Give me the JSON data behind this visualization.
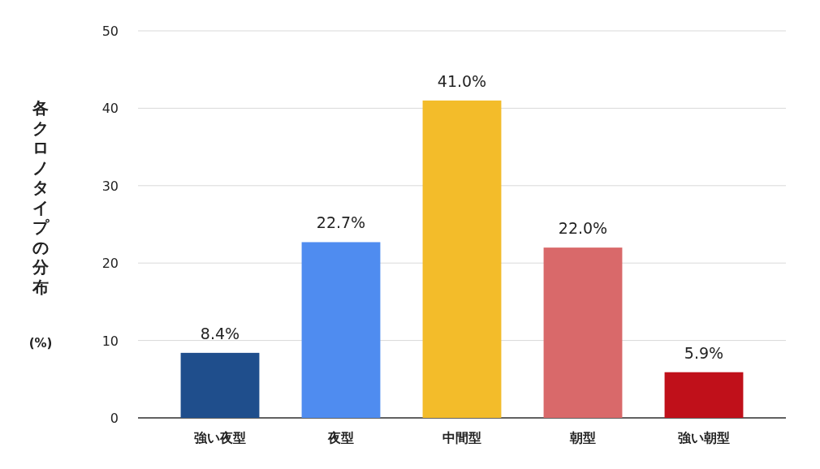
{
  "chart_data": {
    "type": "bar",
    "ylabel": "各クロノタイプの分布\n(%)",
    "categories": [
      "強い夜型",
      "夜型",
      "中間型",
      "朝型",
      "強い朝型"
    ],
    "values": [
      8.4,
      22.7,
      41.0,
      22.0,
      5.9
    ],
    "colors": [
      "#1f4e8c",
      "#4f8cf0",
      "#f3bc2a",
      "#d9696a",
      "#c0101a"
    ],
    "value_labels": [
      "8.4%",
      "22.7%",
      "41.0%",
      "22.0%",
      "5.9%"
    ],
    "ylim": [
      0,
      50
    ],
    "yticks": [
      0,
      10,
      20,
      30,
      40,
      50
    ],
    "grid": "y"
  }
}
